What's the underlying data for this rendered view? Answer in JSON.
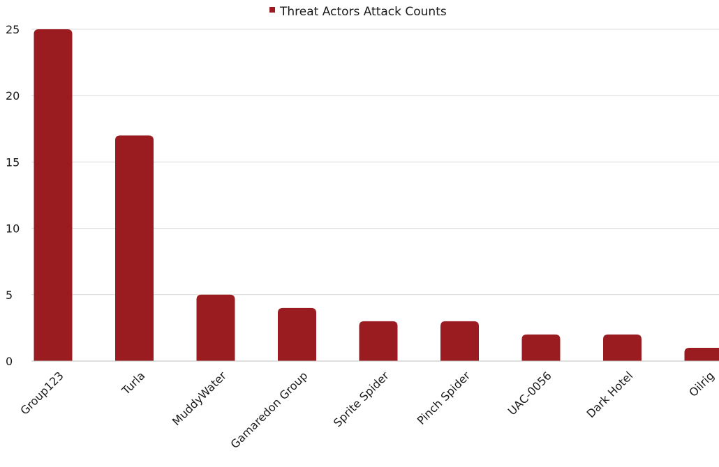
{
  "chart_data": {
    "type": "bar",
    "categories": [
      "Group123",
      "Turla",
      "MuddyWater",
      "Gamaredon Group",
      "Sprite Spider",
      "Pinch Spider",
      "UAC-0056",
      "Dark Hotel",
      "Oilrig"
    ],
    "series": [
      {
        "name": "Threat Actors Attack Counts",
        "values": [
          25,
          17,
          5,
          4,
          3,
          3,
          2,
          2,
          1
        ]
      }
    ],
    "ylim": [
      0,
      25
    ],
    "yticks": [
      0,
      5,
      10,
      15,
      20,
      25
    ],
    "grid": true,
    "legend_position": "top-center",
    "bar_color": "#9b1c20"
  }
}
